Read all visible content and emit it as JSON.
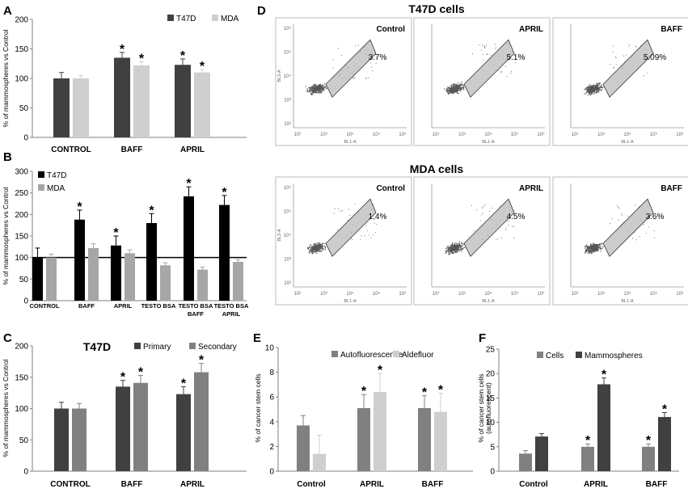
{
  "colors": {
    "dark": "#404040",
    "light": "#cfcfcf",
    "black": "#000000",
    "midgray": "#a6a6a6",
    "gray": "#808080",
    "axis": "#7f7f7f"
  },
  "star": "*",
  "flow": {
    "t47d_title": "T47D cells",
    "mda_title": "MDA cells",
    "axis_x": "BL1-A",
    "axis_y": "BL2-A",
    "ticks": [
      "10²",
      "10³",
      "10⁴",
      "10⁵",
      "10⁶"
    ],
    "t47d": [
      {
        "label": "Control",
        "pct": "3.7%"
      },
      {
        "label": "APRIL",
        "pct": "5.1%"
      },
      {
        "label": "BAFF",
        "pct": "5.09%"
      }
    ],
    "mda": [
      {
        "label": "Control",
        "pct": "1.4%"
      },
      {
        "label": "APRIL",
        "pct": "4.5%"
      },
      {
        "label": "BAFF",
        "pct": "3.6%"
      }
    ]
  },
  "chart_data": [
    {
      "id": "A",
      "type": "bar",
      "categories": [
        "CONTROL",
        "BAFF",
        "APRIL"
      ],
      "series": [
        {
          "name": "T47D",
          "values": [
            100,
            135,
            123
          ],
          "err": [
            10,
            9,
            10
          ],
          "star": [
            false,
            true,
            true
          ]
        },
        {
          "name": "MDA",
          "values": [
            100,
            122,
            110
          ],
          "err": [
            5,
            6,
            5
          ],
          "star": [
            false,
            true,
            true
          ]
        }
      ],
      "ylabel": "% of mammospheres vs Control",
      "ylim": [
        0,
        200
      ],
      "yticks": [
        0,
        50,
        100,
        150,
        200
      ],
      "legend": "top-right"
    },
    {
      "id": "B",
      "type": "bar",
      "categories": [
        "CONTROL",
        "BAFF",
        "APRIL",
        "TESTO BSA",
        "TESTO BSA BAFF",
        "TESTO BSA APRIL"
      ],
      "series": [
        {
          "name": "T47D",
          "values": [
            100,
            188,
            128,
            180,
            242,
            222
          ],
          "err": [
            22,
            22,
            22,
            22,
            22,
            22
          ],
          "star": [
            false,
            true,
            true,
            true,
            true,
            true
          ]
        },
        {
          "name": "MDA",
          "values": [
            100,
            122,
            110,
            82,
            72,
            90
          ],
          "err": [
            8,
            10,
            8,
            6,
            6,
            5
          ],
          "star": [
            false,
            false,
            false,
            false,
            false,
            false
          ]
        }
      ],
      "ylabel": "% of mammospheres vs Control",
      "ylim": [
        0,
        300
      ],
      "yticks": [
        0,
        50,
        100,
        150,
        200,
        250,
        300
      ],
      "legend": "top-left",
      "refline": 100
    },
    {
      "id": "C",
      "type": "bar",
      "title": "T47D",
      "categories": [
        "CONTROL",
        "BAFF",
        "APRIL"
      ],
      "series": [
        {
          "name": "Primary",
          "values": [
            100,
            135,
            123
          ],
          "err": [
            10,
            10,
            12
          ],
          "star": [
            false,
            true,
            true
          ]
        },
        {
          "name": "Secondary",
          "values": [
            100,
            141,
            158
          ],
          "err": [
            8,
            12,
            14
          ],
          "star": [
            false,
            true,
            true
          ]
        }
      ],
      "ylabel": "% of mammospheres vs Control",
      "ylim": [
        0,
        200
      ],
      "yticks": [
        0,
        50,
        100,
        150,
        200
      ],
      "legend": "top-right"
    },
    {
      "id": "E",
      "type": "bar",
      "categories": [
        "Control",
        "APRIL",
        "BAFF"
      ],
      "series": [
        {
          "name": "Autofluorescence",
          "values": [
            3.7,
            5.1,
            5.1
          ],
          "err": [
            0.8,
            1.1,
            1.0
          ],
          "star": [
            false,
            true,
            true
          ]
        },
        {
          "name": "Aldefluor",
          "values": [
            1.4,
            6.4,
            4.8
          ],
          "err": [
            1.5,
            1.5,
            1.5
          ],
          "star": [
            false,
            true,
            true
          ]
        }
      ],
      "ylabel": "% of cancer stem cells",
      "ylim": [
        0,
        10
      ],
      "yticks": [
        0,
        2,
        4,
        6,
        8,
        10
      ],
      "legend": "top-right"
    },
    {
      "id": "F",
      "type": "bar",
      "categories": [
        "Control",
        "APRIL",
        "BAFF"
      ],
      "series": [
        {
          "name": "Cells",
          "values": [
            3.6,
            5.0,
            5.0
          ],
          "err": [
            0.6,
            0.6,
            0.6
          ],
          "star": [
            false,
            true,
            true
          ]
        },
        {
          "name": "Mammospheres",
          "values": [
            7.1,
            17.8,
            11.1
          ],
          "err": [
            0.6,
            1.3,
            0.9
          ],
          "star": [
            false,
            true,
            true
          ]
        }
      ],
      "ylabel": "% of cancer stem cells (autofluorescent)",
      "ylim": [
        0,
        25
      ],
      "yticks": [
        0,
        5,
        10,
        15,
        20,
        25
      ],
      "legend": "top-right"
    }
  ]
}
